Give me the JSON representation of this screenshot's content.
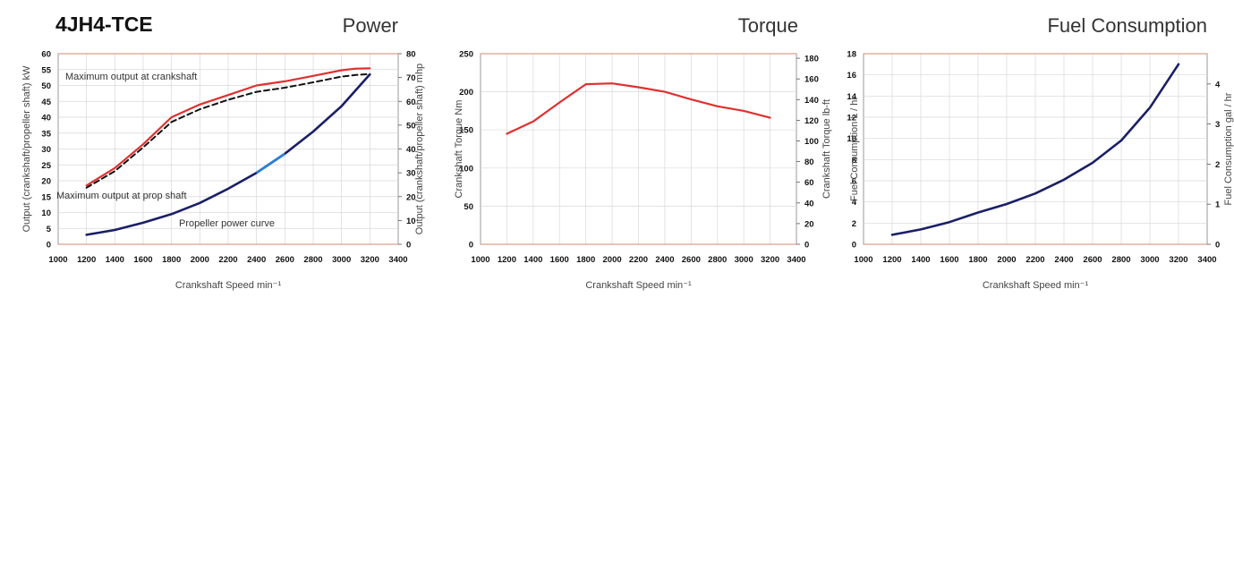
{
  "header": {
    "model": "4JH4-TCE"
  },
  "colors": {
    "red": "#e03030",
    "dash": "#111111",
    "navy": "#1a1f66",
    "blue_highlight": "#2a7fd8"
  },
  "chart_data": [
    {
      "type": "line",
      "title": "Power",
      "xlabel": "Crankshaft Speed min⁻¹",
      "ylabel": "Output (crankshaft/propeller shaft) kW",
      "y2label": "Output (crankshaft/propeller shaft) mhp",
      "xlim": [
        1000,
        3400
      ],
      "ylim": [
        0,
        60
      ],
      "y2lim": [
        0,
        80
      ],
      "x_ticks": [
        1000,
        1200,
        1400,
        1600,
        1800,
        2000,
        2200,
        2400,
        2600,
        2800,
        3000,
        3200,
        3400
      ],
      "y_ticks": [
        0,
        5,
        10,
        15,
        20,
        25,
        30,
        35,
        40,
        45,
        50,
        55,
        60
      ],
      "y2_ticks": [
        0,
        10,
        20,
        30,
        40,
        50,
        60,
        70,
        80
      ],
      "grid": true,
      "annotations": [
        "Maximum output at crankshaft",
        "Maximum output at prop shaft",
        "Propeller power curve"
      ],
      "series": [
        {
          "name": "Maximum output at crankshaft",
          "style": "solid-red",
          "x": [
            1200,
            1400,
            1600,
            1800,
            2000,
            2200,
            2400,
            2600,
            2800,
            3000,
            3100,
            3200
          ],
          "values": [
            18.5,
            24,
            31.5,
            40,
            44,
            47,
            50,
            51.3,
            53,
            54.8,
            55.3,
            55.4
          ]
        },
        {
          "name": "Maximum output at prop shaft",
          "style": "dashed-black",
          "x": [
            1200,
            1400,
            1600,
            1800,
            2000,
            2200,
            2400,
            2600,
            2800,
            3000,
            3100,
            3200
          ],
          "values": [
            17.8,
            23,
            30.5,
            38.5,
            42.5,
            45.5,
            48,
            49.3,
            51,
            52.8,
            53.3,
            53.6
          ]
        },
        {
          "name": "Propeller power curve",
          "style": "solid-navy",
          "x": [
            1200,
            1400,
            1600,
            1800,
            2000,
            2200,
            2400,
            2600,
            2800,
            3000,
            3200
          ],
          "values": [
            3,
            4.5,
            6.8,
            9.5,
            13,
            17.5,
            22.5,
            28.5,
            35.5,
            43.5,
            53.5
          ]
        }
      ]
    },
    {
      "type": "line",
      "title": "Torque",
      "xlabel": "Crankshaft Speed min⁻¹",
      "ylabel": "Crankshaft Torque Nm",
      "y2label": "Crankshaft Torque lb-ft",
      "xlim": [
        1000,
        3400
      ],
      "ylim": [
        0,
        250
      ],
      "y2lim": [
        0,
        184.4
      ],
      "x_ticks": [
        1000,
        1200,
        1400,
        1600,
        1800,
        2000,
        2200,
        2400,
        2600,
        2800,
        3000,
        3200,
        3400
      ],
      "y_ticks": [
        0,
        50,
        100,
        150,
        200,
        250
      ],
      "y2_ticks": [
        0,
        20,
        40,
        60,
        80,
        100,
        120,
        140,
        160,
        180
      ],
      "grid": true,
      "series": [
        {
          "style": "solid-red",
          "x": [
            1200,
            1400,
            1600,
            1800,
            2000,
            2200,
            2400,
            2600,
            2800,
            3000,
            3200
          ],
          "values": [
            145,
            161,
            186,
            210,
            211,
            206,
            200,
            190,
            181,
            175,
            166
          ]
        }
      ]
    },
    {
      "type": "line",
      "title": "Fuel Consumption",
      "xlabel": "Crankshaft Speed min⁻¹",
      "ylabel": "Fuel Consumption L / hr",
      "y2label": "Fuel Consumption gal / hr",
      "xlim": [
        1000,
        3400
      ],
      "ylim": [
        0,
        18
      ],
      "y2lim": [
        0,
        4.755
      ],
      "x_ticks": [
        1000,
        1200,
        1400,
        1600,
        1800,
        2000,
        2200,
        2400,
        2600,
        2800,
        3000,
        3200,
        3400
      ],
      "y_ticks": [
        0,
        2,
        4,
        6,
        8,
        10,
        12,
        14,
        16,
        18
      ],
      "y2_ticks": [
        0,
        1,
        2,
        3,
        4
      ],
      "grid": true,
      "series": [
        {
          "style": "solid-navy",
          "x": [
            1200,
            1400,
            1600,
            1800,
            2000,
            2200,
            2400,
            2600,
            2800,
            3000,
            3200
          ],
          "values": [
            0.9,
            1.4,
            2.1,
            3.0,
            3.8,
            4.8,
            6.1,
            7.7,
            9.8,
            12.9,
            17.0
          ]
        }
      ]
    }
  ]
}
